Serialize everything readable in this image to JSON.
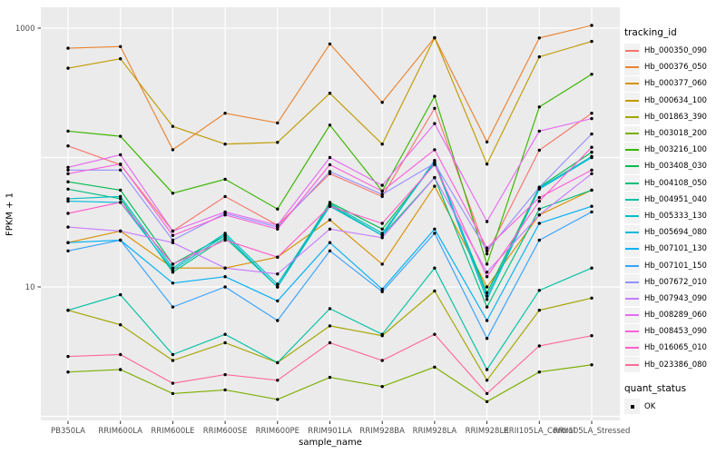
{
  "legend": {
    "tracking_title": "tracking_id",
    "quant_title": "quant_status",
    "quant_items": [
      {
        "label": "OK",
        "marker": "black-square"
      }
    ],
    "key_background": "#F2F2F2"
  },
  "chart_data": {
    "type": "line",
    "title": "",
    "xlabel": "sample_name",
    "ylabel": "FPKM + 1",
    "y_scale": "log10",
    "ylim": [
      0.93,
      1450
    ],
    "y_ticks": [
      {
        "value": 10,
        "label": "10"
      },
      {
        "value": 1000,
        "label": "1000"
      }
    ],
    "gridline_values": [
      1,
      10,
      100,
      1000
    ],
    "panel_background": "#EBEBEB",
    "gridline_color": "#FFFFFF",
    "tick_color": "#333333",
    "tick_label_color": "#4D4D4D",
    "point_marker": {
      "shape": "circle",
      "color": "#000000"
    },
    "legend_position": "right",
    "categories": [
      "PB350LA",
      "RRIM600LA",
      "RRIM600LE",
      "RRIM600SE",
      "RRIM600PE",
      "RRIM901LA",
      "RRIM928BA",
      "RRIM928LA",
      "RRIM928LE",
      "RRII105LA_Control",
      "RRII105LA_Stressed"
    ],
    "series": [
      {
        "name": "Hb_000350_090",
        "color": "#F8766D",
        "values": [
          123,
          88,
          27,
          50,
          30,
          75,
          50,
          240,
          18,
          114,
          220
        ]
      },
      {
        "name": "Hb_000376_050",
        "color": "#EA8331",
        "values": [
          700,
          720,
          115,
          220,
          185,
          755,
          267,
          845,
          132,
          840,
          1050
        ]
      },
      {
        "name": "Hb_000377_060",
        "color": "#D89000",
        "values": [
          22,
          27,
          14,
          14,
          17,
          33,
          15,
          60,
          10,
          36,
          56
        ]
      },
      {
        "name": "Hb_000634_100",
        "color": "#C09B00",
        "values": [
          490,
          580,
          174,
          127,
          131,
          314,
          127,
          840,
          89,
          600,
          790
        ]
      },
      {
        "name": "Hb_001863_390",
        "color": "#A3A500",
        "values": [
          6.6,
          5.1,
          2.7,
          3.7,
          2.6,
          5.0,
          4.2,
          9.3,
          1.9,
          6.6,
          8.2
        ]
      },
      {
        "name": "Hb_003018_200",
        "color": "#7CAE00",
        "values": [
          2.2,
          2.3,
          1.5,
          1.6,
          1.35,
          2.0,
          1.7,
          2.4,
          1.3,
          2.2,
          2.5
        ]
      },
      {
        "name": "Hb_003216_100",
        "color": "#39B600",
        "values": [
          160,
          146,
          53,
          68,
          40,
          178,
          55,
          297,
          15,
          246,
          440
        ]
      },
      {
        "name": "Hb_003408_030",
        "color": "#00BB4E",
        "values": [
          65,
          56,
          15,
          25,
          10,
          45,
          28,
          90,
          9,
          59,
          110
        ]
      },
      {
        "name": "Hb_004108_050",
        "color": "#00BF7D",
        "values": [
          57,
          48,
          13,
          24,
          10,
          43,
          25,
          70,
          7,
          40,
          56
        ]
      },
      {
        "name": "Hb_004951_040",
        "color": "#00C1A3",
        "values": [
          6.6,
          8.7,
          3.0,
          4.3,
          2.6,
          6.8,
          4.3,
          14,
          2.3,
          9.4,
          14
        ]
      },
      {
        "name": "Hb_005333_130",
        "color": "#00BFC4",
        "values": [
          48,
          50,
          14,
          26,
          10.5,
          44,
          26,
          92,
          8,
          58,
          102
        ]
      },
      {
        "name": "Hb_005694_080",
        "color": "#00BBDA",
        "values": [
          46,
          45,
          13.5,
          25,
          10,
          42,
          25,
          95,
          8.5,
          57,
          100
        ]
      },
      {
        "name": "Hb_007101_130",
        "color": "#00B0F6",
        "values": [
          22,
          23,
          10.7,
          12,
          7.8,
          22,
          9.6,
          28,
          5.5,
          31,
          42
        ]
      },
      {
        "name": "Hb_007101_150",
        "color": "#35A2FF",
        "values": [
          19,
          23,
          7,
          10,
          5.5,
          19,
          9.2,
          26,
          4,
          23,
          38
        ]
      },
      {
        "name": "Hb_007672_010",
        "color": "#9590FF",
        "values": [
          80,
          80,
          23,
          37,
          29,
          78,
          52,
          90,
          19,
          59,
          152
        ]
      },
      {
        "name": "Hb_007943_090",
        "color": "#C77CFF",
        "values": [
          29,
          27,
          22,
          14,
          12.6,
          28,
          24,
          70,
          13,
          36,
          75
        ]
      },
      {
        "name": "Hb_008289_060",
        "color": "#E76BF3",
        "values": [
          84,
          105,
          27,
          38,
          30,
          100,
          61,
          183,
          32,
          160,
          200
        ]
      },
      {
        "name": "Hb_008453_090",
        "color": "#FA62DB",
        "values": [
          75,
          89,
          25,
          36,
          28,
          88,
          55,
          115,
          20,
          49,
          80
        ]
      },
      {
        "name": "Hb_016065_010",
        "color": "#FF61CC",
        "values": [
          37,
          45,
          15,
          23,
          17,
          42,
          31,
          88,
          12,
          46,
          120
        ]
      },
      {
        "name": "Hb_023386_080",
        "color": "#FF6A98",
        "values": [
          2.9,
          3.0,
          1.8,
          2.1,
          1.9,
          3.7,
          2.7,
          4.3,
          1.5,
          3.5,
          4.2
        ]
      }
    ]
  }
}
